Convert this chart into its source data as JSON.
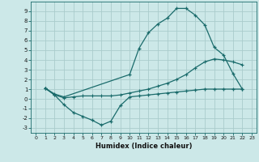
{
  "xlabel": "Humidex (Indice chaleur)",
  "xlim": [
    -0.5,
    23.5
  ],
  "ylim": [
    -3.5,
    10.0
  ],
  "xticks": [
    0,
    1,
    2,
    3,
    4,
    5,
    6,
    7,
    8,
    9,
    10,
    11,
    12,
    13,
    14,
    15,
    16,
    17,
    18,
    19,
    20,
    21,
    22,
    23
  ],
  "yticks": [
    -3,
    -2,
    -1,
    0,
    1,
    2,
    3,
    4,
    5,
    6,
    7,
    8,
    9
  ],
  "bg_color": "#cce8e8",
  "grid_color": "#aacccc",
  "line_color": "#1a6b6b",
  "curve1_x": [
    1,
    2,
    3,
    10,
    11,
    12,
    13,
    14,
    15,
    16,
    17,
    18,
    19,
    20,
    21,
    22
  ],
  "curve1_y": [
    1.1,
    0.5,
    0.2,
    2.5,
    5.2,
    6.8,
    7.7,
    8.3,
    9.3,
    9.3,
    8.6,
    7.6,
    5.3,
    4.5,
    2.6,
    1.0
  ],
  "curve2_x": [
    1,
    2,
    3,
    4,
    5,
    6,
    7,
    8,
    9,
    10,
    11,
    12,
    13,
    14,
    15,
    16,
    17,
    18,
    19,
    20,
    21,
    22
  ],
  "curve2_y": [
    1.1,
    0.4,
    0.1,
    0.2,
    0.3,
    0.3,
    0.3,
    0.3,
    0.4,
    0.6,
    0.8,
    1.0,
    1.3,
    1.6,
    2.0,
    2.5,
    3.2,
    3.8,
    4.1,
    4.0,
    3.8,
    3.5
  ],
  "curve3_x": [
    1,
    2,
    3,
    4,
    5,
    6,
    7,
    8,
    9,
    10,
    11,
    12,
    13,
    14,
    15,
    16,
    17,
    18,
    19,
    20,
    21,
    22
  ],
  "curve3_y": [
    1.1,
    0.4,
    -0.6,
    -1.4,
    -1.8,
    -2.2,
    -2.7,
    -2.3,
    -0.7,
    0.2,
    0.3,
    0.4,
    0.5,
    0.6,
    0.7,
    0.8,
    0.9,
    1.0,
    1.0,
    1.0,
    1.0,
    1.0
  ]
}
